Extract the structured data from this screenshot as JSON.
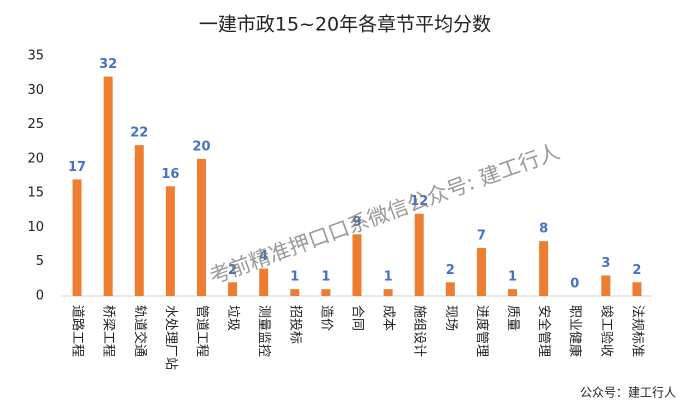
{
  "chart_data": {
    "type": "bar",
    "title": "一建市政15~20年各章节平均分数",
    "categories": [
      "道路工程",
      "桥梁工程",
      "轨道交通",
      "水处理厂站",
      "管道工程",
      "垃圾",
      "测量监控",
      "招投标",
      "造价",
      "合同",
      "成本",
      "施组设计",
      "现场",
      "进度管理",
      "质量",
      "安全管理",
      "职业健康",
      "竣工验收",
      "法规标准"
    ],
    "values": [
      17,
      32,
      22,
      16,
      20,
      2,
      4,
      1,
      1,
      9,
      1,
      12,
      2,
      7,
      1,
      8,
      0,
      3,
      2
    ],
    "color": "#ed7d31",
    "label_color": "#4472c4",
    "ylim": [
      0,
      35
    ],
    "yticks": [
      0,
      5,
      10,
      15,
      20,
      25,
      30,
      35
    ],
    "grid": false,
    "annotations": [
      "考前精准押口口系微信公众号: 建工行人",
      "公众号：建工行人"
    ]
  }
}
